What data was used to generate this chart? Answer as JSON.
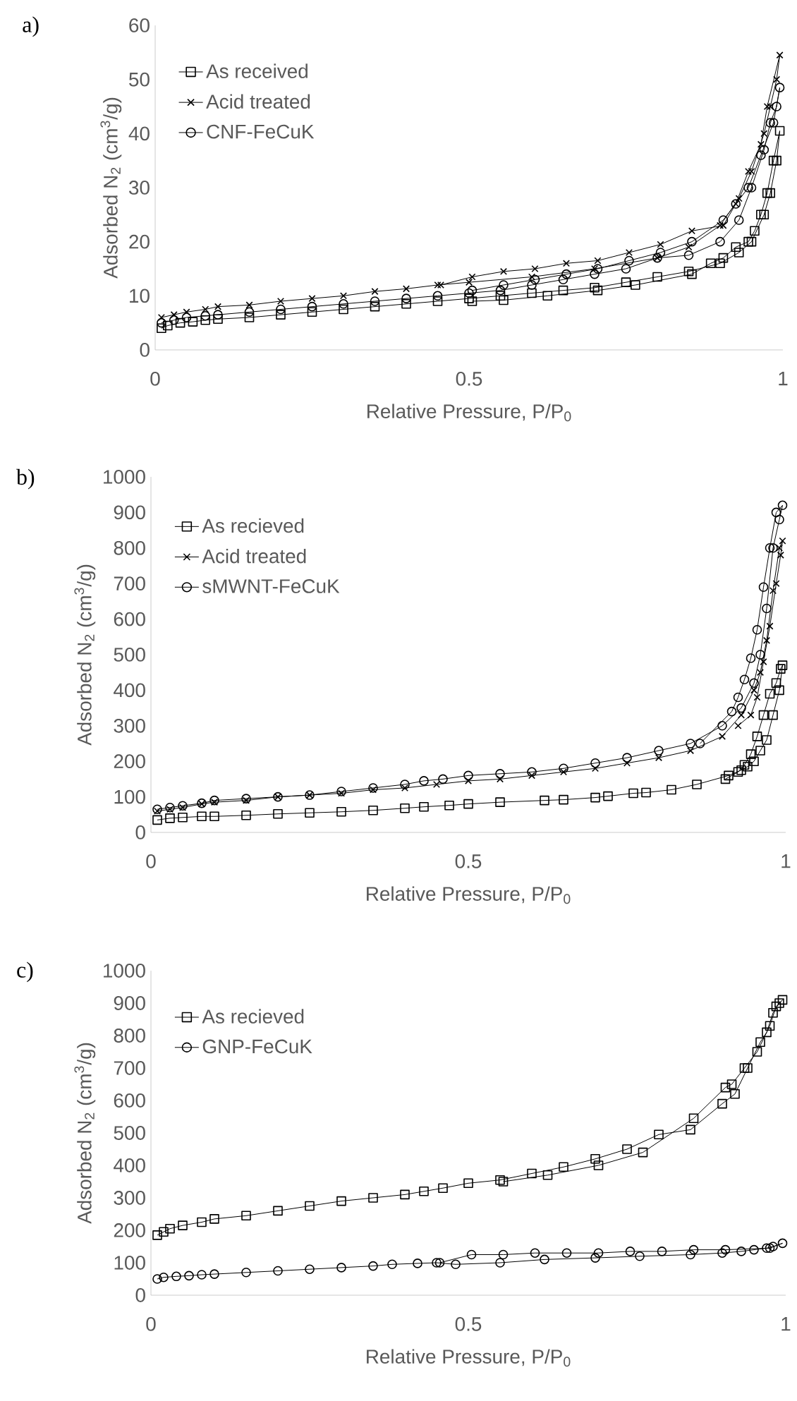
{
  "chart_data": [
    {
      "type": "line",
      "title": "a)",
      "xlabel": "Relative Pressure, P/P$_{0}$",
      "ylabel": "Adsorbed N$_{2}$ (cm$^{3}$/g)",
      "xlim": [
        0,
        1
      ],
      "ylim": [
        0,
        60
      ],
      "xticks": [
        0,
        0.5,
        1
      ],
      "yticks": [
        0,
        10,
        20,
        30,
        40,
        50,
        60
      ],
      "legend": "top left",
      "series": [
        {
          "name": "As received",
          "color": "#000000",
          "marker": "square",
          "x": [
            0.01,
            0.02,
            0.04,
            0.06,
            0.08,
            0.1,
            0.15,
            0.2,
            0.25,
            0.3,
            0.35,
            0.4,
            0.45,
            0.5,
            0.55,
            0.6,
            0.65,
            0.7,
            0.75,
            0.8,
            0.85,
            0.9,
            0.93,
            0.95,
            0.97,
            0.98,
            0.99,
            0.995,
            0.985,
            0.975,
            0.965,
            0.955,
            0.945,
            0.925,
            0.905,
            0.885,
            0.855,
            0.765,
            0.705,
            0.625,
            0.555,
            0.505
          ],
          "values": [
            4,
            4.5,
            5,
            5.2,
            5.5,
            5.7,
            6,
            6.5,
            7,
            7.5,
            8,
            8.5,
            9,
            9.5,
            10,
            10.5,
            11,
            11.5,
            12.5,
            13.5,
            14.5,
            16,
            18,
            20,
            25,
            29,
            35,
            40.5,
            35,
            29,
            25,
            22,
            20,
            19,
            17,
            16,
            14,
            12,
            11,
            10,
            9.2,
            9
          ]
        },
        {
          "name": "Acid treated",
          "color": "#000000",
          "marker": "cross",
          "x": [
            0.01,
            0.03,
            0.05,
            0.08,
            0.1,
            0.15,
            0.2,
            0.25,
            0.3,
            0.35,
            0.4,
            0.45,
            0.5,
            0.6,
            0.7,
            0.8,
            0.85,
            0.9,
            0.93,
            0.95,
            0.97,
            0.98,
            0.99,
            0.995,
            0.975,
            0.965,
            0.945,
            0.925,
            0.905,
            0.855,
            0.805,
            0.755,
            0.705,
            0.655,
            0.605,
            0.555,
            0.505,
            0.455
          ],
          "values": [
            6,
            6.5,
            7,
            7.5,
            8,
            8.3,
            9,
            9.5,
            10,
            10.8,
            11.3,
            12,
            12.5,
            13.5,
            15,
            17,
            19,
            23,
            28,
            33,
            40,
            45,
            50,
            54.5,
            45,
            38,
            33,
            27,
            23,
            22,
            19.5,
            18,
            16.5,
            16,
            15,
            14.5,
            13.5,
            12
          ]
        },
        {
          "name": "CNF-FeCuK",
          "color": "#000000",
          "marker": "circle",
          "x": [
            0.01,
            0.03,
            0.05,
            0.08,
            0.1,
            0.15,
            0.2,
            0.25,
            0.3,
            0.35,
            0.4,
            0.45,
            0.5,
            0.55,
            0.6,
            0.65,
            0.7,
            0.75,
            0.8,
            0.85,
            0.9,
            0.93,
            0.95,
            0.97,
            0.98,
            0.99,
            0.995,
            0.985,
            0.965,
            0.945,
            0.925,
            0.905,
            0.855,
            0.805,
            0.755,
            0.705,
            0.655,
            0.605,
            0.555,
            0.505
          ],
          "values": [
            5,
            5.5,
            6,
            6.3,
            6.5,
            7,
            7.5,
            8,
            8.5,
            9,
            9.5,
            10,
            10.5,
            11,
            12,
            13,
            14,
            15,
            17,
            17.5,
            20,
            24,
            30,
            37,
            42,
            45,
            48.5,
            42,
            36,
            30,
            27,
            24,
            20,
            18,
            16.5,
            15,
            14,
            13,
            12,
            11
          ]
        }
      ]
    },
    {
      "type": "line",
      "title": "b)",
      "xlabel": "Relative Pressure, P/P$_{0}$",
      "ylabel": "Adsorbed N$_{2}$ (cm$^{3}$/g)",
      "xlim": [
        0,
        1
      ],
      "ylim": [
        0,
        1000
      ],
      "xticks": [
        0,
        0.5,
        1
      ],
      "yticks": [
        0,
        100,
        200,
        300,
        400,
        500,
        600,
        700,
        800,
        900,
        1000
      ],
      "legend": "top left",
      "series": [
        {
          "name": "As recieved",
          "color": "#000000",
          "marker": "square",
          "x": [
            0.01,
            0.03,
            0.05,
            0.08,
            0.1,
            0.15,
            0.2,
            0.25,
            0.3,
            0.35,
            0.4,
            0.43,
            0.47,
            0.5,
            0.55,
            0.62,
            0.65,
            0.7,
            0.72,
            0.76,
            0.78,
            0.82,
            0.86,
            0.91,
            0.93,
            0.94,
            0.95,
            0.96,
            0.97,
            0.98,
            0.99,
            0.995,
            0.992,
            0.985,
            0.975,
            0.965,
            0.955,
            0.945,
            0.935,
            0.925,
            0.905
          ],
          "values": [
            35,
            40,
            42,
            45,
            45,
            48,
            52,
            55,
            58,
            62,
            68,
            72,
            76,
            80,
            85,
            90,
            92,
            98,
            102,
            110,
            112,
            120,
            135,
            160,
            175,
            185,
            200,
            230,
            260,
            330,
            400,
            470,
            460,
            420,
            390,
            330,
            270,
            220,
            190,
            170,
            150
          ]
        },
        {
          "name": "Acid treated",
          "color": "#000000",
          "marker": "cross",
          "x": [
            0.01,
            0.03,
            0.05,
            0.08,
            0.1,
            0.15,
            0.2,
            0.25,
            0.3,
            0.35,
            0.4,
            0.45,
            0.5,
            0.55,
            0.6,
            0.65,
            0.7,
            0.75,
            0.8,
            0.85,
            0.9,
            0.93,
            0.95,
            0.96,
            0.97,
            0.98,
            0.99,
            0.995,
            0.992,
            0.985,
            0.975,
            0.965,
            0.955,
            0.945,
            0.925
          ],
          "values": [
            60,
            65,
            70,
            80,
            85,
            90,
            100,
            105,
            110,
            120,
            125,
            135,
            145,
            150,
            160,
            170,
            180,
            195,
            210,
            230,
            270,
            330,
            400,
            450,
            540,
            680,
            800,
            820,
            780,
            700,
            580,
            480,
            380,
            330,
            300
          ]
        },
        {
          "name": "sMWNT-FeCuK",
          "color": "#000000",
          "marker": "circle",
          "x": [
            0.01,
            0.03,
            0.05,
            0.08,
            0.1,
            0.15,
            0.2,
            0.25,
            0.3,
            0.35,
            0.4,
            0.43,
            0.46,
            0.5,
            0.55,
            0.6,
            0.65,
            0.7,
            0.75,
            0.8,
            0.85,
            0.9,
            0.93,
            0.95,
            0.96,
            0.97,
            0.98,
            0.99,
            0.995,
            0.985,
            0.975,
            0.965,
            0.955,
            0.945,
            0.935,
            0.925,
            0.915,
            0.865
          ],
          "values": [
            65,
            70,
            75,
            82,
            90,
            95,
            100,
            105,
            115,
            125,
            135,
            145,
            150,
            160,
            165,
            170,
            180,
            195,
            210,
            230,
            250,
            300,
            350,
            420,
            500,
            630,
            800,
            880,
            920,
            900,
            800,
            690,
            570,
            490,
            430,
            380,
            340,
            250
          ]
        }
      ]
    },
    {
      "type": "line",
      "title": "c)",
      "xlabel": "Relative Pressure, P/P$_{0}$",
      "ylabel": "Adsorbed N$_{2}$ (cm$^{3}$/g)",
      "xlim": [
        0,
        1
      ],
      "ylim": [
        0,
        1000
      ],
      "xticks": [
        0,
        0.5,
        1
      ],
      "yticks": [
        0,
        100,
        200,
        300,
        400,
        500,
        600,
        700,
        800,
        900,
        1000
      ],
      "legend": "top left",
      "series": [
        {
          "name": "As recieved",
          "color": "#000000",
          "marker": "square",
          "x": [
            0.01,
            0.02,
            0.03,
            0.05,
            0.08,
            0.1,
            0.15,
            0.2,
            0.25,
            0.3,
            0.35,
            0.4,
            0.43,
            0.46,
            0.5,
            0.55,
            0.6,
            0.65,
            0.7,
            0.75,
            0.8,
            0.85,
            0.9,
            0.92,
            0.94,
            0.96,
            0.97,
            0.98,
            0.99,
            0.995,
            0.985,
            0.975,
            0.955,
            0.935,
            0.915,
            0.905,
            0.855,
            0.775,
            0.705,
            0.625,
            0.555
          ],
          "values": [
            185,
            195,
            205,
            215,
            225,
            235,
            245,
            260,
            275,
            290,
            300,
            310,
            320,
            330,
            345,
            355,
            375,
            395,
            420,
            450,
            495,
            510,
            590,
            620,
            700,
            780,
            810,
            870,
            900,
            910,
            890,
            830,
            750,
            700,
            650,
            640,
            545,
            440,
            400,
            370,
            350
          ]
        },
        {
          "name": "GNP-FeCuK",
          "color": "#000000",
          "marker": "circle",
          "x": [
            0.01,
            0.02,
            0.04,
            0.06,
            0.08,
            0.1,
            0.15,
            0.2,
            0.25,
            0.3,
            0.35,
            0.38,
            0.42,
            0.45,
            0.48,
            0.55,
            0.62,
            0.7,
            0.77,
            0.85,
            0.9,
            0.93,
            0.95,
            0.97,
            0.98,
            0.995,
            0.975,
            0.905,
            0.855,
            0.805,
            0.755,
            0.705,
            0.655,
            0.605,
            0.555,
            0.505,
            0.455
          ],
          "values": [
            50,
            55,
            58,
            60,
            63,
            65,
            70,
            75,
            80,
            85,
            90,
            95,
            98,
            100,
            95,
            100,
            110,
            115,
            120,
            125,
            130,
            135,
            140,
            145,
            150,
            160,
            145,
            140,
            140,
            135,
            135,
            130,
            130,
            130,
            125,
            125,
            100
          ]
        }
      ]
    }
  ]
}
